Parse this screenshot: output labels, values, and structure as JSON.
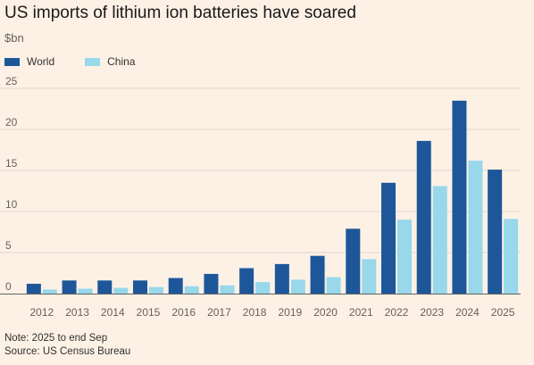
{
  "title": "US imports of lithium ion batteries have soared",
  "unit_label": "$bn",
  "colors": {
    "world": "#1e5799",
    "china": "#98d8ea",
    "grid": "#e2d8ce",
    "axis": "#66605c",
    "tick_text": "#66605c"
  },
  "chart_data": {
    "type": "bar",
    "title": "US imports of lithium ion batteries have soared",
    "ylabel": "$bn",
    "xlabel": "",
    "ylim": [
      0,
      25
    ],
    "yticks": [
      0,
      5,
      10,
      15,
      20,
      25
    ],
    "grid": true,
    "legend_position": "top-left",
    "categories": [
      "2012",
      "2013",
      "2014",
      "2015",
      "2016",
      "2017",
      "2018",
      "2019",
      "2020",
      "2021",
      "2022",
      "2023",
      "2024",
      "2025"
    ],
    "series": [
      {
        "name": "World",
        "color": "#1e5799",
        "values": [
          1.2,
          1.6,
          1.6,
          1.6,
          1.9,
          2.4,
          3.1,
          3.6,
          4.6,
          7.9,
          13.5,
          18.6,
          23.5,
          15.1
        ]
      },
      {
        "name": "China",
        "color": "#98d8ea",
        "values": [
          0.5,
          0.6,
          0.7,
          0.8,
          0.9,
          1.0,
          1.4,
          1.7,
          2.0,
          4.2,
          9.0,
          13.1,
          16.2,
          9.1
        ]
      }
    ]
  },
  "notes": {
    "note": "Note: 2025 to end Sep",
    "source": "Source: US Census Bureau"
  }
}
